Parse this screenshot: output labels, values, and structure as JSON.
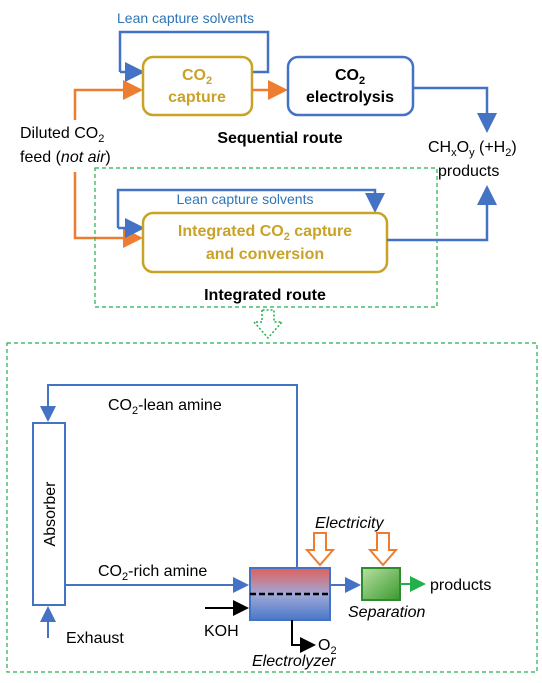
{
  "top": {
    "lean_solvents_1": "Lean capture solvents",
    "capture_box": [
      "CO",
      "2",
      "capture"
    ],
    "electrolysis_box": [
      "CO",
      "2",
      "electrolysis"
    ],
    "sequential_route": "Sequential route",
    "feed": [
      "Diluted CO",
      "2",
      "feed (",
      "not air",
      ")"
    ],
    "products": [
      "CH",
      "x",
      "O",
      "y",
      " (+H",
      "2",
      ")",
      "products"
    ],
    "lean_solvents_2": "Lean capture solvents",
    "integrated_box": [
      "Integrated CO",
      "2",
      " capture",
      "and conversion"
    ],
    "integrated_route": "Integrated route"
  },
  "bottom": {
    "lean_amine": [
      "CO",
      "2",
      "-lean amine"
    ],
    "absorber": "Absorber",
    "rich_amine": [
      "CO",
      "2",
      "-rich amine"
    ],
    "exhaust": "Exhaust",
    "electricity": "Electricity",
    "koh": "KOH",
    "o2": [
      "O",
      "2"
    ],
    "electrolyzer": "Electrolyzer",
    "separation": "Separation",
    "products": "products"
  }
}
